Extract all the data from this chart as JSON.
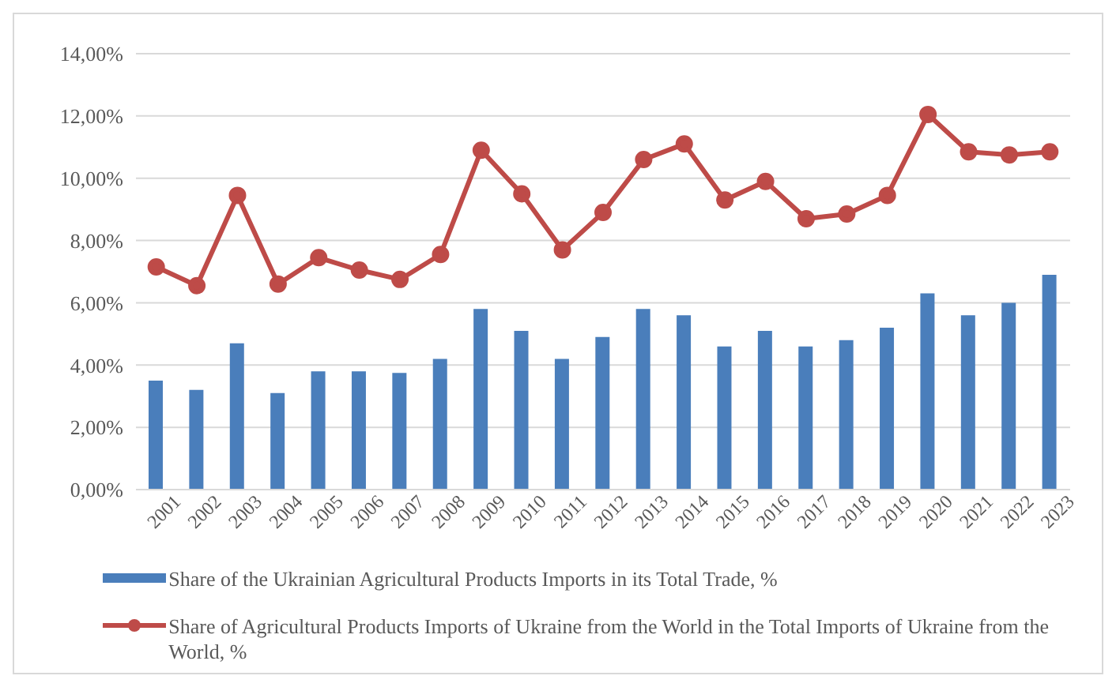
{
  "chart_data": {
    "type": "bar",
    "categories": [
      "2001",
      "2002",
      "2003",
      "2004",
      "2005",
      "2006",
      "2007",
      "2008",
      "2009",
      "2010",
      "2011",
      "2012",
      "2013",
      "2014",
      "2015",
      "2016",
      "2017",
      "2018",
      "2019",
      "2020",
      "2021",
      "2022",
      "2023"
    ],
    "series": [
      {
        "name": "Share of the Ukrainian Agricultural Products Imports in its Total Trade, %",
        "color": "#4a7ebb",
        "values": [
          3.5,
          3.2,
          4.7,
          3.1,
          3.8,
          3.8,
          3.75,
          4.2,
          5.8,
          5.1,
          4.2,
          4.9,
          5.8,
          5.6,
          4.6,
          5.1,
          4.6,
          4.8,
          5.2,
          6.3,
          5.6,
          6.0,
          6.9
        ]
      },
      {
        "name": "Share of Agricultural Products Imports of Ukraine from the World in the Total Imports of Ukraine from the World, %",
        "type": "line",
        "color": "#be4b48",
        "marker": "circle",
        "values": [
          7.15,
          6.55,
          9.45,
          6.6,
          7.45,
          7.05,
          6.75,
          7.55,
          10.9,
          9.5,
          7.7,
          8.9,
          10.6,
          11.1,
          9.3,
          9.9,
          8.7,
          8.85,
          9.45,
          12.05,
          10.85,
          10.75,
          10.85
        ]
      }
    ],
    "ylim": [
      0,
      14
    ],
    "yticks": [
      {
        "value": 0,
        "label": "0,00%"
      },
      {
        "value": 2,
        "label": "2,00%"
      },
      {
        "value": 4,
        "label": "4,00%"
      },
      {
        "value": 6,
        "label": "6,00%"
      },
      {
        "value": 8,
        "label": "8,00%"
      },
      {
        "value": 10,
        "label": "10,00%"
      },
      {
        "value": 12,
        "label": "12,00%"
      },
      {
        "value": 14,
        "label": "14,00%"
      }
    ],
    "grid": "y",
    "legend": "bottom"
  }
}
